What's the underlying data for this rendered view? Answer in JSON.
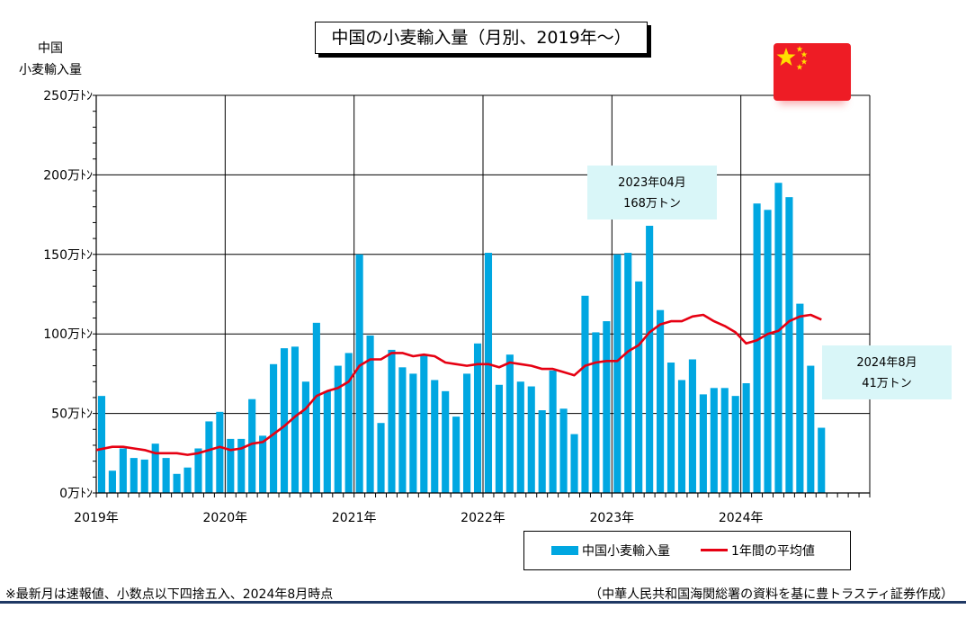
{
  "chart_data": {
    "type": "bar",
    "title": "中国の小麦輸入量（月別、2019年～）",
    "ylabel_line1": "中国",
    "ylabel_line2": "小麦輸入量",
    "ylim": [
      0,
      250
    ],
    "y_ticks": [
      0,
      50,
      100,
      150,
      200,
      250
    ],
    "y_tick_labels": [
      "0万ﾄﾝ",
      "50万ﾄﾝ",
      "100万ﾄﾝ",
      "150万ﾄﾝ",
      "200万ﾄﾝ",
      "250万ﾄﾝ"
    ],
    "x_tick_labels": [
      "2019年",
      "2020年",
      "2021年",
      "2022年",
      "2023年",
      "2024年"
    ],
    "grid": true,
    "legend_position": "bottom-right",
    "series": [
      {
        "name": "中国小麦輸入量",
        "kind": "bar",
        "color": "#00a7e1",
        "values": [
          61,
          14,
          28,
          22,
          21,
          31,
          22,
          12,
          16,
          28,
          45,
          51,
          34,
          34,
          59,
          36,
          81,
          91,
          92,
          70,
          107,
          64,
          80,
          88,
          150,
          99,
          44,
          90,
          79,
          75,
          87,
          71,
          64,
          48,
          75,
          94,
          151,
          68,
          87,
          70,
          67,
          52,
          77,
          53,
          37,
          124,
          101,
          108,
          150,
          151,
          133,
          168,
          115,
          82,
          71,
          84,
          62,
          66,
          66,
          61,
          69,
          182,
          178,
          195,
          186,
          119,
          80,
          41
        ]
      },
      {
        "name": "1年間の平均値",
        "kind": "line",
        "color": "#e60012",
        "values": [
          null,
          29,
          29,
          28,
          27,
          25,
          25,
          25,
          24,
          25,
          27,
          29,
          27,
          28,
          31,
          32,
          37,
          42,
          48,
          53,
          61,
          64,
          66,
          70,
          80,
          84,
          84,
          88,
          88,
          86,
          87,
          86,
          82,
          81,
          80,
          81,
          81,
          79,
          82,
          81,
          80,
          78,
          78,
          76,
          74,
          80,
          82,
          83,
          83,
          89,
          93,
          101,
          106,
          108,
          108,
          111,
          112,
          108,
          105,
          101,
          94,
          96,
          100,
          102,
          108,
          111,
          112,
          109
        ]
      }
    ],
    "annotations": [
      {
        "line1": "2023年04月",
        "line2": "168万トン"
      },
      {
        "line1": "2024年8月",
        "line2": "41万トン"
      }
    ]
  },
  "footer": {
    "note_left": "※最新月は速報値、小数点以下四捨五入、2024年8月時点",
    "source_right": "（中華人民共和国海関総署の資料を基に豊トラスティ証券作成）"
  },
  "colors": {
    "bar": "#00a7e1",
    "avg_line": "#e60012",
    "callout_bg": "#d9f6f8",
    "flag_red": "#ee1c25",
    "flag_star": "#ffde00",
    "rule": "#1f3864"
  },
  "icons": {
    "flag": "china-flag-icon"
  }
}
